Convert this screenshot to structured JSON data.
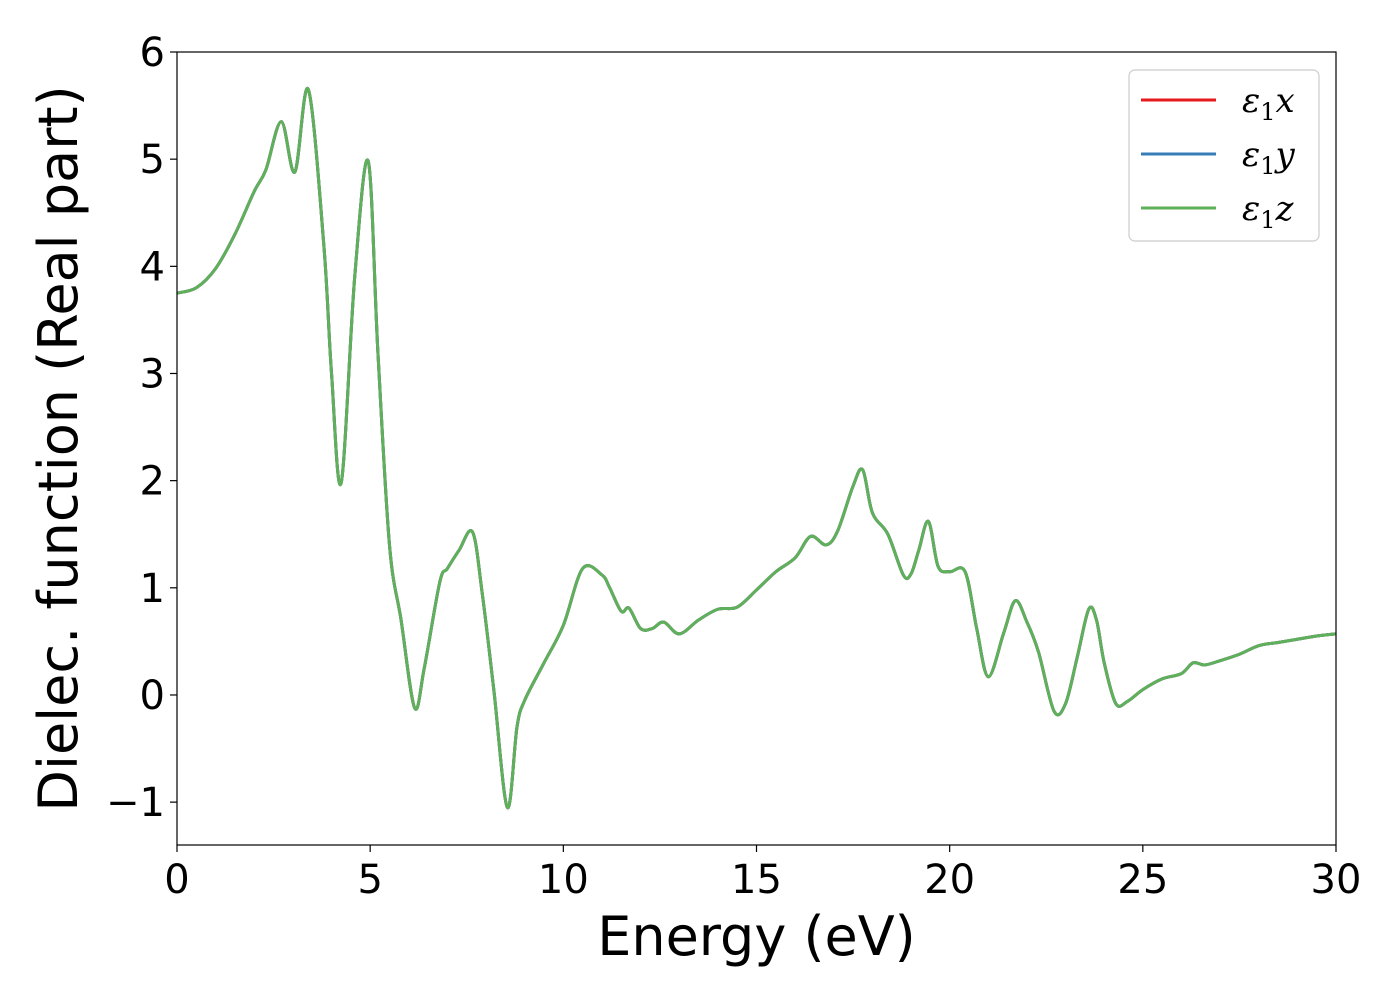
{
  "chart_data": {
    "type": "line",
    "title": "",
    "xlabel": "Energy (eV)",
    "ylabel": "Dielec. function (Real part)",
    "xlim": [
      0,
      30
    ],
    "ylim": [
      -1.4,
      6
    ],
    "xticks": [
      0,
      5,
      10,
      15,
      20,
      25,
      30
    ],
    "xtick_labels": [
      "0",
      "5",
      "10",
      "15",
      "20",
      "25",
      "30"
    ],
    "yticks": [
      -1,
      0,
      1,
      2,
      3,
      4,
      5,
      6
    ],
    "ytick_labels": [
      "−1",
      "0",
      "1",
      "2",
      "3",
      "4",
      "5",
      "6"
    ],
    "grid": false,
    "legend_position": "top-right",
    "series": [
      {
        "name": "ε1x",
        "legend_symbol": "ε",
        "legend_sub": "1",
        "legend_var": "x",
        "color": "#e41a1c",
        "x": [
          0,
          0.5,
          1.0,
          1.5,
          2.0,
          2.3,
          2.7,
          3.05,
          3.4,
          3.8,
          4.0,
          4.25,
          4.6,
          4.95,
          5.2,
          5.5,
          5.8,
          6.15,
          6.4,
          6.8,
          7.0,
          7.3,
          7.65,
          7.9,
          8.2,
          8.55,
          8.8,
          9.0,
          9.5,
          10.0,
          10.5,
          11.0,
          11.2,
          11.5,
          11.7,
          12.0,
          12.3,
          12.6,
          13.0,
          13.5,
          14.0,
          14.5,
          15.0,
          15.5,
          16.0,
          16.4,
          16.8,
          17.1,
          17.5,
          17.75,
          18.0,
          18.4,
          18.8,
          19.0,
          19.2,
          19.45,
          19.7,
          20.0,
          20.4,
          20.7,
          21.0,
          21.4,
          21.7,
          22.0,
          22.3,
          22.7,
          23.0,
          23.3,
          23.6,
          23.8,
          24.0,
          24.3,
          24.6,
          25.0,
          25.5,
          26.0,
          26.3,
          26.6,
          27.0,
          27.5,
          28.0,
          28.5,
          29.0,
          29.5,
          30.0
        ],
        "values": [
          3.75,
          3.8,
          3.98,
          4.3,
          4.7,
          4.9,
          5.35,
          4.88,
          5.65,
          4.2,
          3.0,
          1.98,
          3.9,
          4.98,
          3.2,
          1.4,
          0.7,
          -0.12,
          0.25,
          1.05,
          1.18,
          1.35,
          1.52,
          0.95,
          0.05,
          -1.05,
          -0.3,
          -0.05,
          0.3,
          0.65,
          1.18,
          1.12,
          1.0,
          0.78,
          0.81,
          0.62,
          0.62,
          0.68,
          0.57,
          0.7,
          0.8,
          0.82,
          0.98,
          1.15,
          1.28,
          1.48,
          1.4,
          1.53,
          1.95,
          2.1,
          1.7,
          1.5,
          1.12,
          1.13,
          1.35,
          1.62,
          1.2,
          1.15,
          1.15,
          0.62,
          0.17,
          0.58,
          0.88,
          0.68,
          0.4,
          -0.15,
          -0.08,
          0.35,
          0.8,
          0.7,
          0.3,
          -0.08,
          -0.06,
          0.05,
          0.15,
          0.2,
          0.3,
          0.28,
          0.32,
          0.38,
          0.46,
          0.49,
          0.52,
          0.55,
          0.57
        ]
      },
      {
        "name": "ε1y",
        "legend_symbol": "ε",
        "legend_sub": "1",
        "legend_var": "y",
        "color": "#377eb8",
        "x": [
          0,
          0.5,
          1.0,
          1.5,
          2.0,
          2.3,
          2.7,
          3.05,
          3.4,
          3.8,
          4.0,
          4.25,
          4.6,
          4.95,
          5.2,
          5.5,
          5.8,
          6.15,
          6.4,
          6.8,
          7.0,
          7.3,
          7.65,
          7.9,
          8.2,
          8.55,
          8.8,
          9.0,
          9.5,
          10.0,
          10.5,
          11.0,
          11.2,
          11.5,
          11.7,
          12.0,
          12.3,
          12.6,
          13.0,
          13.5,
          14.0,
          14.5,
          15.0,
          15.5,
          16.0,
          16.4,
          16.8,
          17.1,
          17.5,
          17.75,
          18.0,
          18.4,
          18.8,
          19.0,
          19.2,
          19.45,
          19.7,
          20.0,
          20.4,
          20.7,
          21.0,
          21.4,
          21.7,
          22.0,
          22.3,
          22.7,
          23.0,
          23.3,
          23.6,
          23.8,
          24.0,
          24.3,
          24.6,
          25.0,
          25.5,
          26.0,
          26.3,
          26.6,
          27.0,
          27.5,
          28.0,
          28.5,
          29.0,
          29.5,
          30.0
        ],
        "values": [
          3.75,
          3.8,
          3.98,
          4.3,
          4.7,
          4.9,
          5.35,
          4.88,
          5.65,
          4.2,
          3.0,
          1.98,
          3.9,
          4.98,
          3.2,
          1.4,
          0.7,
          -0.12,
          0.25,
          1.05,
          1.18,
          1.35,
          1.52,
          0.95,
          0.05,
          -1.05,
          -0.3,
          -0.05,
          0.3,
          0.65,
          1.18,
          1.12,
          1.0,
          0.78,
          0.81,
          0.62,
          0.62,
          0.68,
          0.57,
          0.7,
          0.8,
          0.82,
          0.98,
          1.15,
          1.28,
          1.48,
          1.4,
          1.53,
          1.95,
          2.1,
          1.7,
          1.5,
          1.12,
          1.13,
          1.35,
          1.62,
          1.2,
          1.15,
          1.15,
          0.62,
          0.17,
          0.58,
          0.88,
          0.68,
          0.4,
          -0.15,
          -0.08,
          0.35,
          0.8,
          0.7,
          0.3,
          -0.08,
          -0.06,
          0.05,
          0.15,
          0.2,
          0.3,
          0.28,
          0.32,
          0.38,
          0.46,
          0.49,
          0.52,
          0.55,
          0.57
        ]
      },
      {
        "name": "ε1z",
        "legend_symbol": "ε",
        "legend_sub": "1",
        "legend_var": "z",
        "color": "#5fb05b",
        "x": [
          0,
          0.5,
          1.0,
          1.5,
          2.0,
          2.3,
          2.7,
          3.05,
          3.4,
          3.8,
          4.0,
          4.25,
          4.6,
          4.95,
          5.2,
          5.5,
          5.8,
          6.15,
          6.4,
          6.8,
          7.0,
          7.3,
          7.65,
          7.9,
          8.2,
          8.55,
          8.8,
          9.0,
          9.5,
          10.0,
          10.5,
          11.0,
          11.2,
          11.5,
          11.7,
          12.0,
          12.3,
          12.6,
          13.0,
          13.5,
          14.0,
          14.5,
          15.0,
          15.5,
          16.0,
          16.4,
          16.8,
          17.1,
          17.5,
          17.75,
          18.0,
          18.4,
          18.8,
          19.0,
          19.2,
          19.45,
          19.7,
          20.0,
          20.4,
          20.7,
          21.0,
          21.4,
          21.7,
          22.0,
          22.3,
          22.7,
          23.0,
          23.3,
          23.6,
          23.8,
          24.0,
          24.3,
          24.6,
          25.0,
          25.5,
          26.0,
          26.3,
          26.6,
          27.0,
          27.5,
          28.0,
          28.5,
          29.0,
          29.5,
          30.0
        ],
        "values": [
          3.75,
          3.8,
          3.98,
          4.3,
          4.7,
          4.9,
          5.35,
          4.88,
          5.65,
          4.2,
          3.0,
          1.98,
          3.9,
          4.98,
          3.2,
          1.4,
          0.7,
          -0.12,
          0.25,
          1.05,
          1.18,
          1.35,
          1.52,
          0.95,
          0.05,
          -1.05,
          -0.3,
          -0.05,
          0.3,
          0.65,
          1.18,
          1.12,
          1.0,
          0.78,
          0.81,
          0.62,
          0.62,
          0.68,
          0.57,
          0.7,
          0.8,
          0.82,
          0.98,
          1.15,
          1.28,
          1.48,
          1.4,
          1.53,
          1.95,
          2.1,
          1.7,
          1.5,
          1.12,
          1.13,
          1.35,
          1.62,
          1.2,
          1.15,
          1.15,
          0.62,
          0.17,
          0.58,
          0.88,
          0.68,
          0.4,
          -0.15,
          -0.08,
          0.35,
          0.8,
          0.7,
          0.3,
          -0.08,
          -0.06,
          0.05,
          0.15,
          0.2,
          0.3,
          0.28,
          0.32,
          0.38,
          0.46,
          0.49,
          0.52,
          0.55,
          0.57
        ]
      }
    ]
  }
}
